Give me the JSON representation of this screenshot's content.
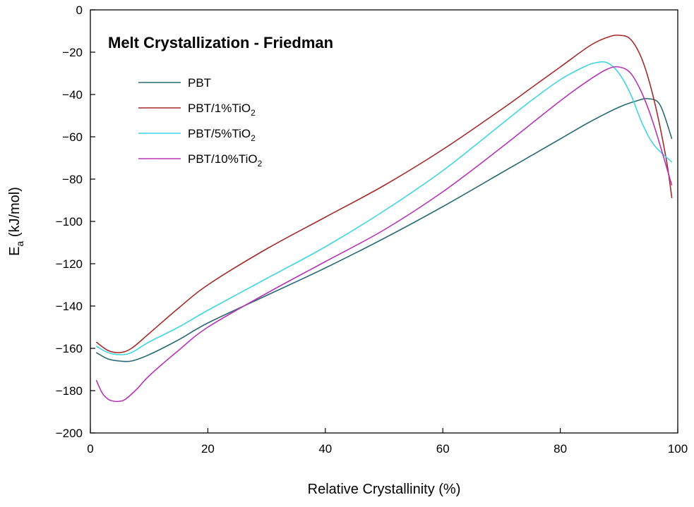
{
  "chart_data": {
    "type": "line",
    "title": "Melt Crystallization - Friedman",
    "xlabel": "Relative Crystallinity (%)",
    "ylabel": {
      "main": "E",
      "sub": "a",
      "unit": " (kJ/mol)"
    },
    "xlim": [
      0,
      100
    ],
    "ylim": [
      -200,
      0
    ],
    "xticks": [
      0,
      20,
      40,
      60,
      80,
      100
    ],
    "yticks": [
      0,
      -20,
      -40,
      -60,
      -80,
      -100,
      -120,
      -140,
      -160,
      -180,
      -200
    ],
    "grid": false,
    "legend_position": "top-left",
    "series": [
      {
        "name": "PBT",
        "label_main": "PBT",
        "label_sub": "",
        "color": "#2a6b73",
        "x": [
          1,
          3,
          5,
          7,
          10,
          15,
          20,
          30,
          40,
          50,
          60,
          70,
          80,
          85,
          90,
          93,
          95,
          97,
          99
        ],
        "y": [
          -162,
          -165,
          -166,
          -166,
          -163,
          -156,
          -148,
          -135,
          -122,
          -108,
          -93,
          -77,
          -61,
          -53,
          -46,
          -43,
          -42,
          -45,
          -61
        ]
      },
      {
        "name": "PBT/1%TiO2",
        "label_main": "PBT/1%TiO",
        "label_sub": "2",
        "color": "#a52a2a",
        "x": [
          1,
          3,
          5,
          7,
          10,
          15,
          20,
          30,
          40,
          50,
          60,
          70,
          75,
          80,
          85,
          88,
          90,
          92,
          94,
          96,
          98,
          99
        ],
        "y": [
          -157,
          -161,
          -162,
          -160,
          -153,
          -141,
          -130,
          -113,
          -98,
          -83,
          -66,
          -47,
          -37,
          -27,
          -17,
          -13,
          -12,
          -14,
          -24,
          -43,
          -70,
          -89
        ]
      },
      {
        "name": "PBT/5%TiO2",
        "label_main": "PBT/5%TiO",
        "label_sub": "2",
        "color": "#3fd6e3",
        "x": [
          1,
          3,
          5,
          7,
          10,
          15,
          20,
          30,
          40,
          50,
          60,
          70,
          75,
          80,
          84,
          86,
          88,
          90,
          92,
          94,
          96,
          99
        ],
        "y": [
          -159,
          -162,
          -163,
          -162,
          -157,
          -150,
          -142,
          -127,
          -112,
          -95,
          -76,
          -54,
          -43,
          -33,
          -27,
          -25,
          -25,
          -30,
          -40,
          -54,
          -64,
          -72
        ]
      },
      {
        "name": "PBT/10%TiO2",
        "label_main": "PBT/10%TiO",
        "label_sub": "2",
        "color": "#b535b5",
        "x": [
          1,
          2,
          3,
          4,
          5,
          6,
          8,
          10,
          15,
          20,
          30,
          40,
          50,
          60,
          70,
          80,
          85,
          88,
          90,
          92,
          94,
          96,
          99
        ],
        "y": [
          -175,
          -181,
          -184,
          -185,
          -185,
          -184,
          -179,
          -173,
          -161,
          -150,
          -134,
          -119,
          -104,
          -86,
          -65,
          -43,
          -33,
          -28,
          -27,
          -30,
          -40,
          -55,
          -83
        ]
      }
    ]
  }
}
